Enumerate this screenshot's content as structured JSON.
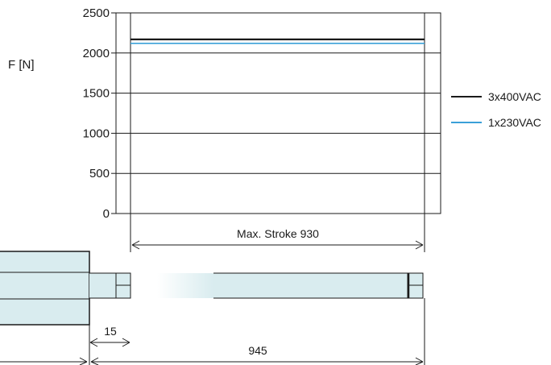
{
  "chart_data": {
    "type": "line",
    "ylabel": "F [N]",
    "xlabel": "",
    "ylim": [
      0,
      2500
    ],
    "yticks": [
      0,
      500,
      1000,
      1500,
      2000,
      2500
    ],
    "x": [
      0,
      930
    ],
    "grid": true,
    "legend": "right",
    "series": [
      {
        "name": "3x400VAC",
        "values": [
          2170,
          2170
        ],
        "color": "#1a1a1a"
      },
      {
        "name": "1x230VAC",
        "values": [
          2120,
          2120
        ],
        "color": "#3aa0d8"
      }
    ]
  },
  "drawing": {
    "stroke_label": "Max. Stroke 930",
    "offset_label": "15",
    "length_label": "945",
    "body_color": "#d9ecef"
  }
}
